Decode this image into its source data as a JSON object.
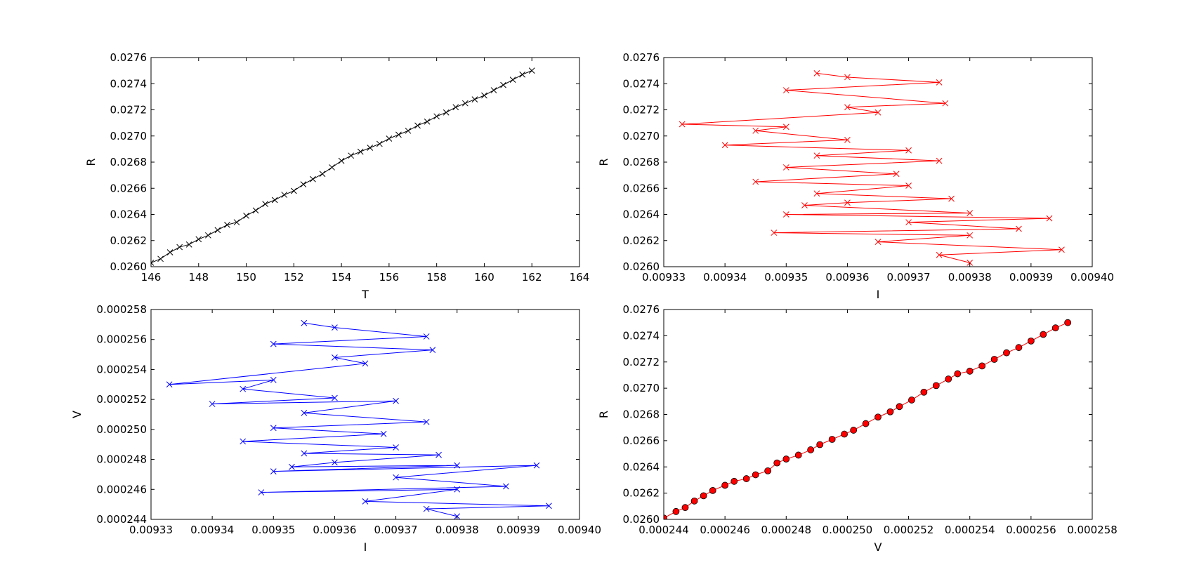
{
  "chart_data": [
    {
      "type": "line",
      "panel": "top-left",
      "xlabel": "T",
      "ylabel": "R",
      "xlim": [
        146,
        164
      ],
      "ylim": [
        0.026,
        0.0276
      ],
      "x_ticks": [
        "146",
        "148",
        "150",
        "152",
        "154",
        "156",
        "158",
        "160",
        "162",
        "164"
      ],
      "y_ticks": [
        "0.0260",
        "0.0262",
        "0.0264",
        "0.0266",
        "0.0268",
        "0.0270",
        "0.0272",
        "0.0274",
        "0.0276"
      ],
      "grid": false,
      "series": [
        {
          "color": "#000000",
          "marker": "x",
          "x": [
            146.0,
            146.4,
            146.8,
            147.2,
            147.6,
            148.0,
            148.4,
            148.8,
            149.2,
            149.6,
            150.0,
            150.4,
            150.8,
            151.2,
            151.6,
            152.0,
            152.4,
            152.8,
            153.2,
            153.6,
            154.0,
            154.4,
            154.8,
            155.2,
            155.6,
            156.0,
            156.4,
            156.8,
            157.2,
            157.6,
            158.0,
            158.4,
            158.8,
            159.2,
            159.6,
            160.0,
            160.4,
            160.8,
            161.2,
            161.6,
            162.0
          ],
          "y": [
            0.02603,
            0.02606,
            0.02611,
            0.02615,
            0.02617,
            0.02621,
            0.02624,
            0.02628,
            0.02632,
            0.02634,
            0.02639,
            0.02643,
            0.02648,
            0.02651,
            0.02655,
            0.02658,
            0.02663,
            0.02667,
            0.02671,
            0.02676,
            0.02681,
            0.02685,
            0.02688,
            0.02691,
            0.02694,
            0.02698,
            0.02701,
            0.02704,
            0.02708,
            0.02711,
            0.02715,
            0.02718,
            0.02722,
            0.02725,
            0.02728,
            0.02731,
            0.02735,
            0.02739,
            0.02743,
            0.02747,
            0.0275
          ]
        }
      ]
    },
    {
      "type": "line",
      "panel": "top-right",
      "xlabel": "I",
      "ylabel": "R",
      "xlim": [
        0.00933,
        0.0094
      ],
      "ylim": [
        0.026,
        0.0276
      ],
      "x_ticks": [
        "0.00933",
        "0.00934",
        "0.00935",
        "0.00936",
        "0.00937",
        "0.00938",
        "0.00939",
        "0.00940"
      ],
      "y_ticks": [
        "0.0260",
        "0.0262",
        "0.0264",
        "0.0266",
        "0.0268",
        "0.0270",
        "0.0272",
        "0.0274",
        "0.0276"
      ],
      "grid": false,
      "series": [
        {
          "color": "#ff0000",
          "marker": "x",
          "x": [
            0.009355,
            0.00936,
            0.009375,
            0.00935,
            0.009376,
            0.00936,
            0.009365,
            0.009333,
            0.00935,
            0.009345,
            0.00936,
            0.00934,
            0.00937,
            0.009355,
            0.009375,
            0.00935,
            0.009368,
            0.009345,
            0.00937,
            0.009355,
            0.009377,
            0.00936,
            0.009353,
            0.00938,
            0.00935,
            0.009393,
            0.00937,
            0.009388,
            0.009348,
            0.00938,
            0.009365,
            0.009395,
            0.009375,
            0.00938
          ],
          "y": [
            0.02748,
            0.02745,
            0.02741,
            0.02735,
            0.02725,
            0.02722,
            0.02718,
            0.02709,
            0.02707,
            0.02704,
            0.02697,
            0.02693,
            0.02689,
            0.02685,
            0.02681,
            0.02676,
            0.02671,
            0.02665,
            0.02662,
            0.02656,
            0.02652,
            0.02649,
            0.02647,
            0.02641,
            0.0264,
            0.02637,
            0.02634,
            0.02629,
            0.02626,
            0.02624,
            0.02619,
            0.02613,
            0.02609,
            0.02603
          ]
        }
      ]
    },
    {
      "type": "line",
      "panel": "bottom-left",
      "xlabel": "I",
      "ylabel": "V",
      "xlim": [
        0.00933,
        0.0094
      ],
      "ylim": [
        0.000244,
        0.000258
      ],
      "x_ticks": [
        "0.00933",
        "0.00934",
        "0.00935",
        "0.00936",
        "0.00937",
        "0.00938",
        "0.00939",
        "0.00940"
      ],
      "y_ticks": [
        "0.000244",
        "0.000246",
        "0.000248",
        "0.000250",
        "0.000252",
        "0.000254",
        "0.000256",
        "0.000258"
      ],
      "grid": false,
      "series": [
        {
          "color": "#0000ff",
          "marker": "x",
          "x": [
            0.009355,
            0.00936,
            0.009375,
            0.00935,
            0.009376,
            0.00936,
            0.009365,
            0.009333,
            0.00935,
            0.009345,
            0.00936,
            0.00934,
            0.00937,
            0.009355,
            0.009375,
            0.00935,
            0.009368,
            0.009345,
            0.00937,
            0.009355,
            0.009377,
            0.00936,
            0.009353,
            0.00938,
            0.00935,
            0.009393,
            0.00937,
            0.009388,
            0.009348,
            0.00938,
            0.009365,
            0.009395,
            0.009375,
            0.00938
          ],
          "y": [
            0.0002571,
            0.0002568,
            0.0002562,
            0.0002557,
            0.0002553,
            0.0002548,
            0.0002544,
            0.000253,
            0.0002533,
            0.0002527,
            0.0002521,
            0.0002517,
            0.0002519,
            0.0002511,
            0.0002505,
            0.0002501,
            0.0002497,
            0.0002492,
            0.0002488,
            0.0002484,
            0.0002483,
            0.0002478,
            0.0002475,
            0.0002476,
            0.0002472,
            0.0002476,
            0.0002468,
            0.0002462,
            0.0002458,
            0.000246,
            0.0002452,
            0.0002449,
            0.0002447,
            0.0002442
          ]
        }
      ]
    },
    {
      "type": "line",
      "panel": "bottom-right",
      "xlabel": "V",
      "ylabel": "R",
      "xlim": [
        0.000244,
        0.000258
      ],
      "ylim": [
        0.026,
        0.0276
      ],
      "x_ticks": [
        "0.000244",
        "0.000246",
        "0.000248",
        "0.000250",
        "0.000252",
        "0.000254",
        "0.000256",
        "0.000258"
      ],
      "y_ticks": [
        "0.0260",
        "0.0262",
        "0.0264",
        "0.0266",
        "0.0268",
        "0.0270",
        "0.0272",
        "0.0274",
        "0.0276"
      ],
      "grid": false,
      "series": [
        {
          "color": "#ff0000",
          "marker": "o",
          "x": [
            0.000244,
            0.0002444,
            0.0002447,
            0.000245,
            0.0002453,
            0.0002456,
            0.000246,
            0.0002463,
            0.0002467,
            0.000247,
            0.0002474,
            0.0002477,
            0.000248,
            0.0002484,
            0.0002488,
            0.0002491,
            0.0002495,
            0.0002499,
            0.0002502,
            0.0002506,
            0.000251,
            0.0002514,
            0.0002517,
            0.0002521,
            0.0002525,
            0.0002529,
            0.0002533,
            0.0002536,
            0.000254,
            0.0002544,
            0.0002548,
            0.0002552,
            0.0002556,
            0.000256,
            0.0002564,
            0.0002568,
            0.0002572
          ],
          "y": [
            0.02601,
            0.02606,
            0.02609,
            0.02614,
            0.02618,
            0.02622,
            0.02626,
            0.02629,
            0.02631,
            0.02634,
            0.02637,
            0.02643,
            0.02646,
            0.02649,
            0.02653,
            0.02657,
            0.02661,
            0.02665,
            0.02668,
            0.02673,
            0.02678,
            0.02682,
            0.02686,
            0.02691,
            0.02697,
            0.02702,
            0.02707,
            0.02711,
            0.02713,
            0.02717,
            0.02722,
            0.02727,
            0.02731,
            0.02736,
            0.02741,
            0.02746,
            0.0275
          ]
        }
      ]
    }
  ]
}
